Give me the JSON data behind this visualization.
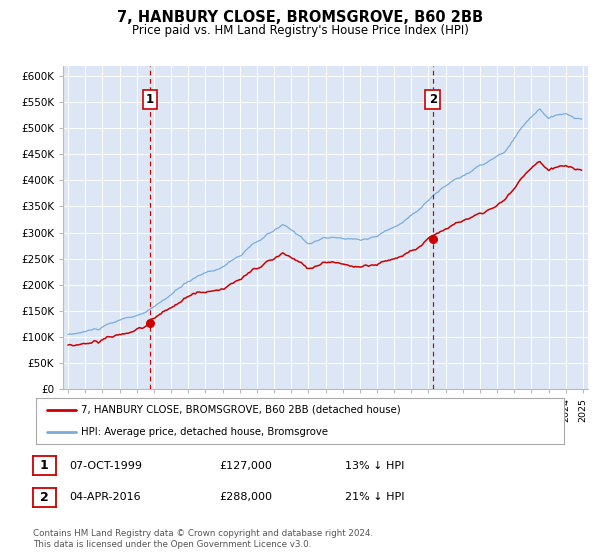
{
  "title": "7, HANBURY CLOSE, BROMSGROVE, B60 2BB",
  "subtitle": "Price paid vs. HM Land Registry's House Price Index (HPI)",
  "background_color": "#ffffff",
  "plot_bg_color": "#dce6f5",
  "grid_color": "#ffffff",
  "red_line_color": "#cc0000",
  "blue_line_color": "#7aaddd",
  "sale1_date_num": 1999.77,
  "sale1_value": 127000,
  "sale2_date_num": 2016.25,
  "sale2_value": 288000,
  "vline_color": "#cc0000",
  "marker_color": "#cc0000",
  "legend_label_red": "7, HANBURY CLOSE, BROMSGROVE, B60 2BB (detached house)",
  "legend_label_blue": "HPI: Average price, detached house, Bromsgrove",
  "table_row1": [
    "1",
    "07-OCT-1999",
    "£127,000",
    "13% ↓ HPI"
  ],
  "table_row2": [
    "2",
    "04-APR-2016",
    "£288,000",
    "21% ↓ HPI"
  ],
  "footer_text": "Contains HM Land Registry data © Crown copyright and database right 2024.\nThis data is licensed under the Open Government Licence v3.0.",
  "ylim": [
    0,
    620000
  ],
  "yticks": [
    0,
    50000,
    100000,
    150000,
    200000,
    250000,
    300000,
    350000,
    400000,
    450000,
    500000,
    550000,
    600000
  ],
  "ytick_labels": [
    "£0",
    "£50K",
    "£100K",
    "£150K",
    "£200K",
    "£250K",
    "£300K",
    "£350K",
    "£400K",
    "£450K",
    "£500K",
    "£550K",
    "£600K"
  ],
  "xlim_start": 1994.7,
  "xlim_end": 2025.3,
  "hpi_discount1": 0.13,
  "hpi_discount2": 0.21
}
